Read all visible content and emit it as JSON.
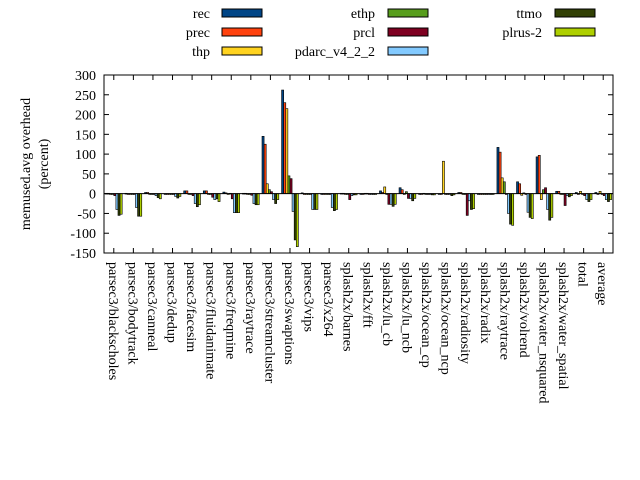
{
  "chart_data": {
    "type": "bar",
    "ylabel": [
      "memused.avg overhead",
      "(percent)"
    ],
    "ylim": [
      -150,
      300
    ],
    "yticks": [
      300,
      250,
      200,
      150,
      100,
      50,
      0,
      -50,
      -100,
      -150
    ],
    "legend_position": "top",
    "categories": [
      "parsec3/blackscholes",
      "parsec3/bodytrack",
      "parsec3/canneal",
      "parsec3/dedup",
      "parsec3/facesim",
      "parsec3/fluidanimate",
      "parsec3/freqmine",
      "parsec3/raytrace",
      "parsec3/streamcluster",
      "parsec3/swaptions",
      "parsec3/vips",
      "parsec3/x264",
      "splash2x/barnes",
      "splash2x/fft",
      "splash2x/lu_cb",
      "splash2x/lu_ncb",
      "splash2x/ocean_cp",
      "splash2x/ocean_ncp",
      "splash2x/radiosity",
      "splash2x/radix",
      "splash2x/raytrace",
      "splash2x/volrend",
      "splash2x/water_nsquared",
      "splash2x/water_spatial",
      "total",
      "average"
    ],
    "series": [
      {
        "name": "rec",
        "color": "#004586",
        "values": [
          1,
          1,
          3,
          0,
          7,
          7,
          4,
          1,
          145,
          262,
          2,
          0,
          1,
          -2,
          7,
          15,
          0,
          0,
          3,
          -1,
          117,
          30,
          93,
          6,
          3,
          3
        ]
      },
      {
        "name": "prec",
        "color": "#ff420e",
        "values": [
          1,
          0,
          3,
          0,
          7,
          7,
          2,
          1,
          125,
          230,
          0,
          0,
          1,
          -2,
          3,
          10,
          0,
          0,
          3,
          -1,
          105,
          25,
          97,
          6,
          0,
          0
        ]
      },
      {
        "name": "thp",
        "color": "#ffd320",
        "values": [
          0,
          0,
          0,
          0,
          0,
          0,
          0,
          0,
          25,
          215,
          0,
          0,
          0,
          1,
          17,
          0,
          1,
          82,
          0,
          0,
          40,
          -4,
          -15,
          0,
          6,
          6
        ]
      },
      {
        "name": "ethp",
        "color": "#579d1c",
        "values": [
          0,
          0,
          0,
          0,
          0,
          0,
          1,
          0,
          10,
          45,
          0,
          0,
          0,
          1,
          0,
          5,
          0,
          0,
          0,
          0,
          30,
          2,
          10,
          0,
          0,
          0
        ]
      },
      {
        "name": "prcl",
        "color": "#7e0021",
        "values": [
          -5,
          0,
          0,
          0,
          -5,
          -9,
          -13,
          -4,
          5,
          38,
          0,
          0,
          -15,
          0,
          -27,
          -12,
          0,
          0,
          -55,
          0,
          0,
          0,
          15,
          -30,
          -5,
          -5
        ]
      },
      {
        "name": "pdarc_v4_2_2",
        "color": "#83caff",
        "values": [
          -40,
          -35,
          -5,
          -7,
          -25,
          -15,
          -48,
          -25,
          -15,
          -45,
          -40,
          -35,
          -5,
          0,
          -27,
          -12,
          0,
          0,
          -18,
          -1,
          -50,
          -47,
          -40,
          -5,
          -15,
          -15
        ]
      },
      {
        "name": "ttmo",
        "color": "#314004",
        "values": [
          -55,
          -57,
          -10,
          -11,
          -33,
          -13,
          -48,
          -28,
          -25,
          -117,
          -40,
          -43,
          -3,
          0,
          -32,
          -18,
          -3,
          -5,
          -40,
          -2,
          -77,
          -60,
          -67,
          -8,
          -20,
          -20
        ]
      },
      {
        "name": "plrus-2",
        "color": "#aecf00",
        "values": [
          -52,
          -57,
          -13,
          -7,
          -28,
          -20,
          -48,
          -28,
          -15,
          -134,
          -40,
          -40,
          -3,
          0,
          -27,
          -12,
          -3,
          -3,
          -38,
          -1,
          -80,
          -63,
          -60,
          -5,
          -15,
          -15
        ]
      }
    ]
  }
}
